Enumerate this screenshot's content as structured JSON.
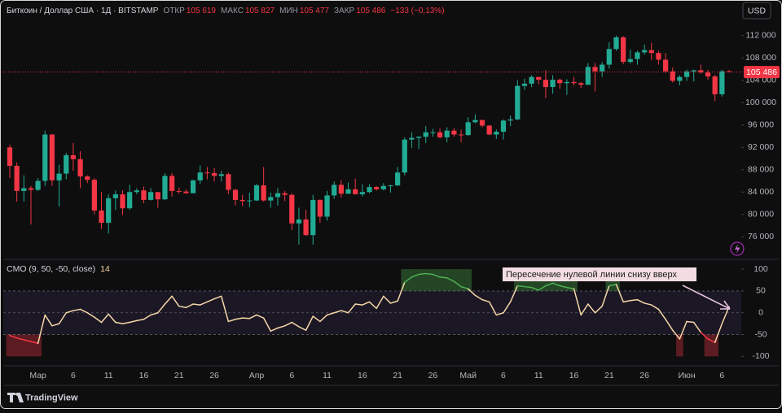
{
  "header": {
    "symbol": "Биткоин / Доллар США · 1Д · BITSTAMP",
    "open_label": "ОТКР",
    "open": "105 619",
    "high_label": "МАКС",
    "high": "105 827",
    "low_label": "МИН",
    "low": "105 477",
    "close_label": "ЗАКР",
    "close": "105 486",
    "change": "−133 (−0,13%)"
  },
  "currency": "USD",
  "annotation": "Пересечение нулевой линии снизу вверх",
  "footer": "TradingView",
  "chart_data": [
    {
      "type": "candlestick",
      "categories": [
        null,
        null,
        null,
        null,
        "Мар",
        null,
        null,
        null,
        null,
        "6",
        null,
        null,
        null,
        null,
        "11",
        null,
        null,
        null,
        null,
        "16",
        null,
        null,
        null,
        null,
        "21",
        null,
        null,
        null,
        null,
        "26",
        null,
        null,
        null,
        null,
        null,
        "Апр",
        null,
        null,
        null,
        null,
        "6",
        null,
        null,
        null,
        null,
        "11",
        null,
        null,
        null,
        null,
        "16",
        null,
        null,
        null,
        null,
        "21",
        null,
        null,
        null,
        null,
        "26",
        null,
        null,
        null,
        null,
        "Май",
        null,
        null,
        null,
        null,
        "6",
        null,
        null,
        null,
        null,
        "11",
        null,
        null,
        null,
        null,
        "16",
        null,
        null,
        null,
        null,
        "21",
        null,
        null,
        null,
        null,
        "26",
        null,
        null,
        null,
        null,
        null,
        "Июн",
        null,
        null,
        null,
        null,
        "6",
        null
      ],
      "open": [
        92000,
        88700,
        84200,
        84700,
        84400,
        86000,
        94300,
        86100,
        87300,
        90600,
        89900,
        86800,
        86200,
        80700,
        78500,
        82900,
        83600,
        81100,
        84000,
        84300,
        82600,
        84000,
        82700,
        86900,
        84200,
        84100,
        83800,
        86100,
        87500,
        87400,
        86900,
        87200,
        84400,
        82600,
        82400,
        82500,
        85200,
        82500,
        83100,
        83800,
        83500,
        78400,
        79100,
        76300,
        82600,
        79600,
        83400,
        85300,
        83700,
        84500,
        83600,
        84000,
        84900,
        84500,
        85100,
        85200,
        87500,
        93400,
        93700,
        93900,
        94700,
        94700,
        93800,
        95000,
        94300,
        94200,
        96500,
        96900,
        95900,
        94300,
        94800,
        96800,
        97000,
        103000,
        103400,
        104600,
        104100,
        102800,
        104100,
        103500,
        103700,
        103500,
        103200,
        106400,
        105600,
        106800,
        109600,
        111700,
        107300,
        107800,
        109000,
        109400,
        108900,
        107700,
        105600,
        103900,
        104600,
        105600,
        105800,
        105400,
        104700,
        101500,
        105619
      ],
      "high": [
        92500,
        89300,
        87000,
        85100,
        86500,
        95000,
        94400,
        88900,
        91000,
        92800,
        91300,
        87000,
        86500,
        84000,
        83600,
        84300,
        84300,
        85300,
        84700,
        85000,
        84700,
        84000,
        87400,
        87400,
        84800,
        84500,
        86200,
        88800,
        88500,
        88300,
        87800,
        87500,
        84600,
        83500,
        83900,
        85500,
        88500,
        83900,
        84700,
        84200,
        83800,
        81200,
        80800,
        83500,
        82700,
        84200,
        85900,
        86100,
        85700,
        86400,
        85400,
        85400,
        85100,
        85600,
        85300,
        88500,
        93800,
        94700,
        94000,
        95800,
        95300,
        95400,
        95600,
        95500,
        95200,
        97400,
        97900,
        96900,
        96000,
        95200,
        97000,
        97700,
        104000,
        104300,
        104900,
        104600,
        105800,
        104900,
        104300,
        104200,
        104600,
        103700,
        107100,
        107100,
        107300,
        110800,
        112000,
        111900,
        109500,
        109300,
        110400,
        110700,
        109300,
        108900,
        106300,
        104900,
        105900,
        105900,
        106800,
        105900,
        105000,
        105900,
        105827
      ],
      "low": [
        86500,
        82300,
        82300,
        78200,
        84200,
        85100,
        85100,
        81400,
        86300,
        87800,
        84700,
        85600,
        80000,
        77400,
        76600,
        80800,
        79900,
        80800,
        83600,
        82000,
        82500,
        81200,
        82600,
        83200,
        83700,
        83700,
        83800,
        85500,
        86300,
        85900,
        85900,
        83600,
        81600,
        81500,
        81300,
        82400,
        82300,
        81200,
        81600,
        82400,
        77200,
        74600,
        76200,
        74600,
        78500,
        78900,
        82800,
        83000,
        83700,
        83600,
        83200,
        83800,
        84300,
        84300,
        83900,
        85100,
        87000,
        91900,
        91700,
        92800,
        93900,
        93600,
        92900,
        93900,
        92900,
        94100,
        96300,
        95600,
        94200,
        93500,
        93400,
        95800,
        96900,
        102300,
        102800,
        103300,
        100800,
        101600,
        102500,
        101400,
        103100,
        102600,
        103200,
        102000,
        104600,
        106100,
        109300,
        106900,
        107000,
        106800,
        108600,
        107600,
        106800,
        105300,
        103600,
        103100,
        103900,
        103800,
        105200,
        104100,
        100300,
        101100,
        105477
      ],
      "close": [
        88700,
        84200,
        84700,
        84400,
        86000,
        94300,
        86100,
        87300,
        90600,
        89900,
        86800,
        86200,
        80700,
        78500,
        82900,
        83600,
        81100,
        84000,
        84300,
        82600,
        84000,
        82700,
        86900,
        84200,
        84100,
        83800,
        86100,
        87500,
        87400,
        86900,
        87200,
        84400,
        82600,
        82400,
        82500,
        85200,
        82500,
        83100,
        83800,
        83500,
        78400,
        79100,
        76300,
        82600,
        79600,
        83400,
        85300,
        83700,
        84500,
        83600,
        84000,
        84900,
        84500,
        85100,
        85200,
        87500,
        93400,
        93700,
        93900,
        94700,
        94700,
        93800,
        95000,
        94300,
        94200,
        96500,
        96900,
        95900,
        94300,
        94800,
        96800,
        97000,
        103000,
        103400,
        104600,
        104100,
        102800,
        104100,
        103500,
        103700,
        103500,
        103200,
        106400,
        105600,
        106800,
        109600,
        111700,
        107300,
        107800,
        109000,
        109400,
        108900,
        107700,
        105600,
        103900,
        104600,
        105600,
        105800,
        105400,
        104700,
        101500,
        105619,
        105486
      ],
      "up_color": "#22ab94",
      "down_color": "#f23645",
      "ylim": [
        72400,
        114300
      ],
      "yticks": [
        {
          "value": 76000,
          "label": "76 000"
        },
        {
          "value": 80000,
          "label": "80 000"
        },
        {
          "value": 84000,
          "label": "84 000"
        },
        {
          "value": 88000,
          "label": "88 000"
        },
        {
          "value": 92000,
          "label": "92 000"
        },
        {
          "value": 96000,
          "label": "96 000"
        },
        {
          "value": 100000,
          "label": "100 000"
        },
        {
          "value": 104000,
          "label": "104 000"
        },
        {
          "value": 108000,
          "label": "108 000"
        },
        {
          "value": 112000,
          "label": "112 000"
        }
      ],
      "last_price": {
        "value": 105486,
        "label": "105 486"
      }
    },
    {
      "type": "line",
      "title": "CMO (9, 50, -50, close)",
      "values": [
        -52,
        -58,
        -62,
        -66,
        -70,
        -5,
        -30,
        -25,
        0,
        5,
        8,
        0,
        -10,
        -22,
        -3,
        -22,
        -25,
        -22,
        -18,
        -15,
        -5,
        0,
        20,
        38,
        15,
        12,
        20,
        18,
        25,
        32,
        38,
        -20,
        -15,
        -12,
        -13,
        -5,
        -12,
        -42,
        -35,
        -30,
        -22,
        -32,
        -40,
        -8,
        -20,
        -5,
        0,
        5,
        0,
        20,
        18,
        25,
        10,
        38,
        22,
        27,
        70,
        82,
        88,
        90,
        88,
        82,
        80,
        72,
        60,
        55,
        40,
        30,
        25,
        -5,
        0,
        25,
        62,
        60,
        58,
        52,
        62,
        68,
        62,
        58,
        55,
        -5,
        20,
        0,
        15,
        62,
        65,
        25,
        28,
        30,
        22,
        18,
        8,
        -15,
        -40,
        -60,
        -20,
        -22,
        -45,
        -60,
        -68,
        -25,
        14
      ],
      "color": "#f5d6a8",
      "above_color": "#4caf50",
      "below_color": "#f23645",
      "levels": [
        50,
        0,
        -50
      ],
      "ylim": [
        -118,
        117
      ],
      "yticks": [
        100,
        50,
        0,
        -50,
        -100
      ]
    }
  ]
}
